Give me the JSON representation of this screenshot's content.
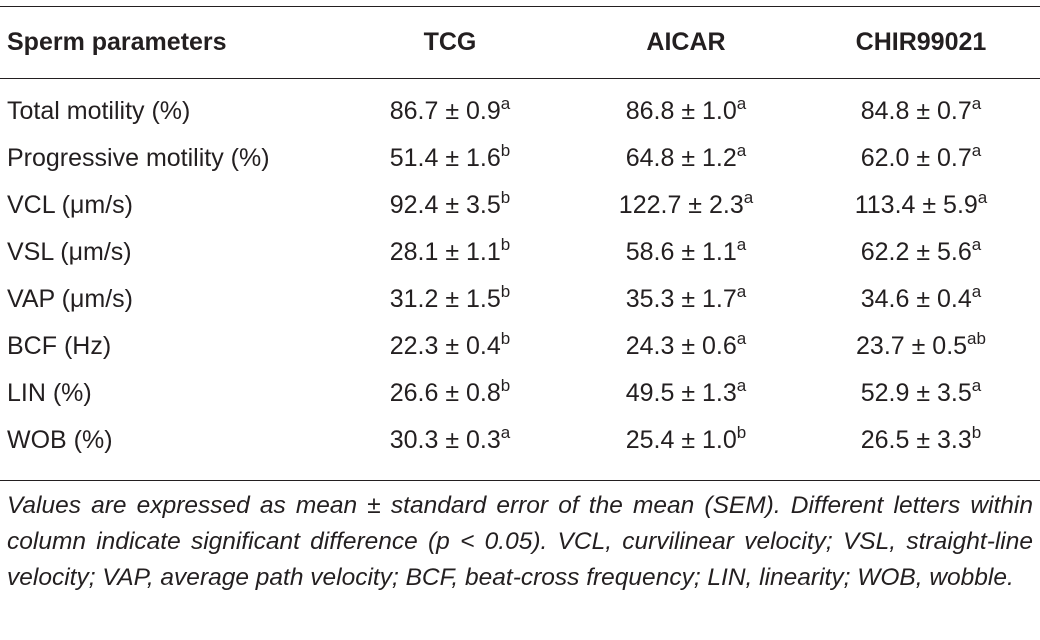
{
  "table": {
    "headers": [
      "Sperm parameters",
      "TCG",
      "AICAR",
      "CHIR99021"
    ],
    "rows": [
      {
        "param": "Total motility (%)",
        "cells": [
          {
            "v": "86.7 ± 0.9",
            "s": "a"
          },
          {
            "v": "86.8 ± 1.0",
            "s": "a"
          },
          {
            "v": "84.8 ± 0.7",
            "s": "a"
          }
        ]
      },
      {
        "param": "Progressive motility (%)",
        "cells": [
          {
            "v": "51.4 ± 1.6",
            "s": "b"
          },
          {
            "v": "64.8 ± 1.2",
            "s": "a"
          },
          {
            "v": "62.0 ± 0.7",
            "s": "a"
          }
        ]
      },
      {
        "param": "VCL (μm/s)",
        "cells": [
          {
            "v": "92.4 ± 3.5",
            "s": "b"
          },
          {
            "v": "122.7 ± 2.3",
            "s": "a"
          },
          {
            "v": "113.4 ± 5.9",
            "s": "a"
          }
        ]
      },
      {
        "param": "VSL (μm/s)",
        "cells": [
          {
            "v": "28.1 ± 1.1",
            "s": "b"
          },
          {
            "v": "58.6 ± 1.1",
            "s": "a"
          },
          {
            "v": "62.2 ± 5.6",
            "s": "a"
          }
        ]
      },
      {
        "param": "VAP (μm/s)",
        "cells": [
          {
            "v": "31.2 ± 1.5",
            "s": "b"
          },
          {
            "v": "35.3 ± 1.7",
            "s": "a"
          },
          {
            "v": "34.6 ± 0.4",
            "s": "a"
          }
        ]
      },
      {
        "param": "BCF (Hz)",
        "cells": [
          {
            "v": "22.3 ± 0.4",
            "s": "b"
          },
          {
            "v": "24.3 ± 0.6",
            "s": "a"
          },
          {
            "v": "23.7 ± 0.5",
            "s": "ab"
          }
        ]
      },
      {
        "param": "LIN (%)",
        "cells": [
          {
            "v": "26.6 ± 0.8",
            "s": "b"
          },
          {
            "v": "49.5 ± 1.3",
            "s": "a"
          },
          {
            "v": "52.9 ± 3.5",
            "s": "a"
          }
        ]
      },
      {
        "param": "WOB (%)",
        "cells": [
          {
            "v": "30.3 ± 0.3",
            "s": "a"
          },
          {
            "v": "25.4 ± 1.0",
            "s": "b"
          },
          {
            "v": "26.5 ± 3.3",
            "s": "b"
          }
        ]
      }
    ]
  },
  "footnote": "Values are expressed as mean ± standard error of the mean (SEM). Different letters within column indicate significant difference (p < 0.05). VCL, curvilinear velocity; VSL, straight-line velocity; VAP, average path velocity; BCF, beat-cross frequency; LIN, linearity; WOB, wobble."
}
